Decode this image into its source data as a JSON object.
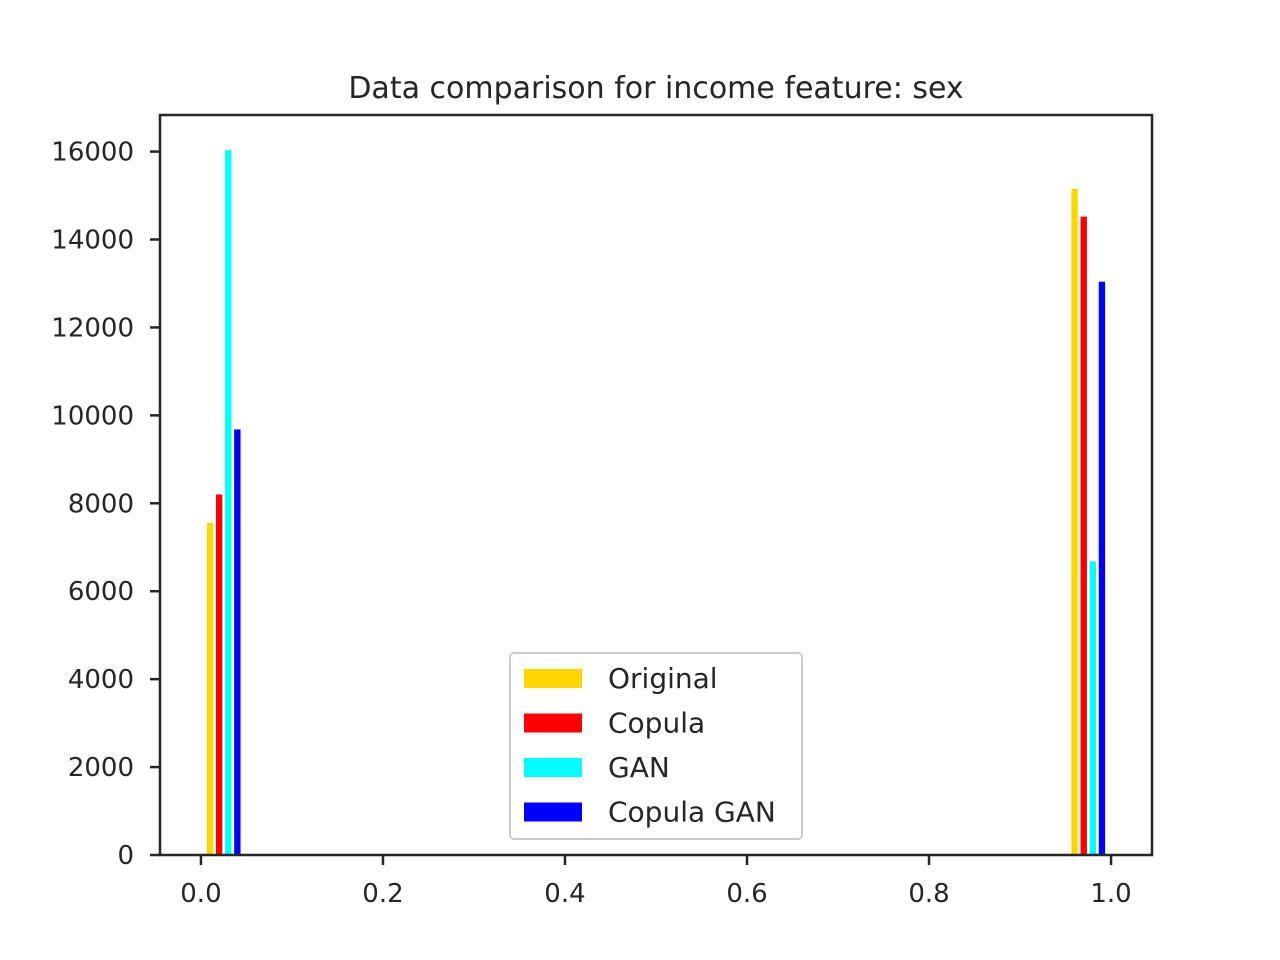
{
  "chart_data": {
    "type": "bar",
    "title": "Data comparison for income feature: sex",
    "xlabel": "",
    "ylabel": "",
    "xlim": [
      -0.045,
      1.045
    ],
    "ylim": [
      0,
      16832
    ],
    "x_ticks": [
      "0.0",
      "0.2",
      "0.4",
      "0.6",
      "0.8",
      "1.0"
    ],
    "x_tick_values": [
      0.0,
      0.2,
      0.4,
      0.6,
      0.8,
      1.0
    ],
    "y_ticks": [
      "0",
      "2000",
      "4000",
      "6000",
      "8000",
      "10000",
      "12000",
      "14000",
      "16000"
    ],
    "y_tick_values": [
      0,
      2000,
      4000,
      6000,
      8000,
      10000,
      12000,
      14000,
      16000
    ],
    "bar_width": 0.007,
    "grid": false,
    "legend_position": "lower center",
    "series": [
      {
        "name": "Original",
        "color": "#FFD700",
        "x": [
          0.01,
          0.96
        ],
        "values": [
          7550,
          15150
        ]
      },
      {
        "name": "Copula",
        "color": "#FF0000",
        "x": [
          0.02,
          0.97
        ],
        "values": [
          8200,
          14520
        ]
      },
      {
        "name": "GAN",
        "color": "#00FFFF",
        "x": [
          0.03,
          0.98
        ],
        "values": [
          16030,
          6680
        ]
      },
      {
        "name": "Copula GAN",
        "color": "#0000FF",
        "x": [
          0.04,
          0.99
        ],
        "values": [
          9680,
          13040
        ]
      }
    ]
  }
}
